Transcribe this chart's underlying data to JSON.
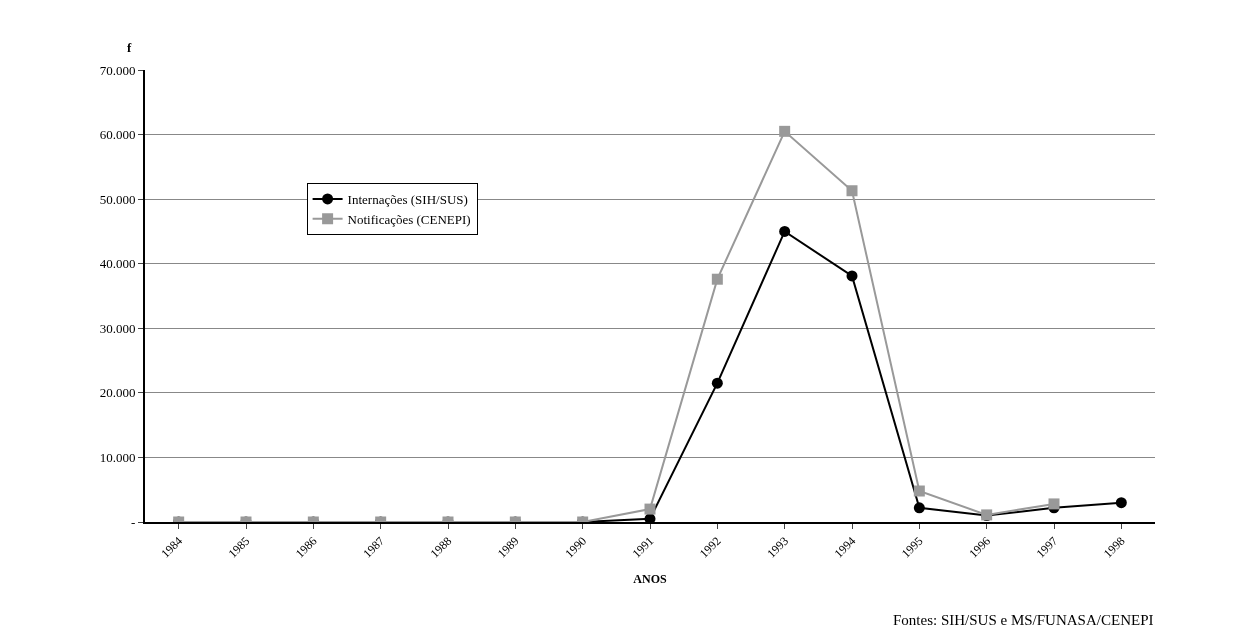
{
  "chart_data": {
    "type": "line",
    "categories": [
      "1984",
      "1985",
      "1986",
      "1987",
      "1988",
      "1989",
      "1990",
      "1991",
      "1992",
      "1993",
      "1994",
      "1995",
      "1996",
      "1997",
      "1998"
    ],
    "series": [
      {
        "name": "Internações (SIH/SUS)",
        "color": "#000000",
        "marker": "circle",
        "values": [
          0,
          0,
          0,
          0,
          0,
          0,
          0,
          500,
          21500,
          45000,
          38100,
          2200,
          1000,
          2200,
          3000
        ]
      },
      {
        "name": "Notificações (CENEPI)",
        "color": "#999999",
        "marker": "square",
        "values": [
          0,
          0,
          0,
          0,
          0,
          0,
          0,
          2000,
          37600,
          60500,
          51300,
          4800,
          1100,
          2800,
          null
        ]
      }
    ],
    "ylabel": "f",
    "xlabel": "ANOS",
    "ylim": [
      0,
      70000
    ],
    "yticks": [
      {
        "value": 0,
        "label": "-"
      },
      {
        "value": 10000,
        "label": "10.000"
      },
      {
        "value": 20000,
        "label": "20.000"
      },
      {
        "value": 30000,
        "label": "30.000"
      },
      {
        "value": 40000,
        "label": "40.000"
      },
      {
        "value": 50000,
        "label": "50.000"
      },
      {
        "value": 60000,
        "label": "60.000"
      },
      {
        "value": 70000,
        "label": "70.000"
      }
    ],
    "grid": "y",
    "legend": "top left",
    "annotations": [
      "Fontes: SIH/SUS e MS/FUNASA/CENEPI"
    ]
  }
}
